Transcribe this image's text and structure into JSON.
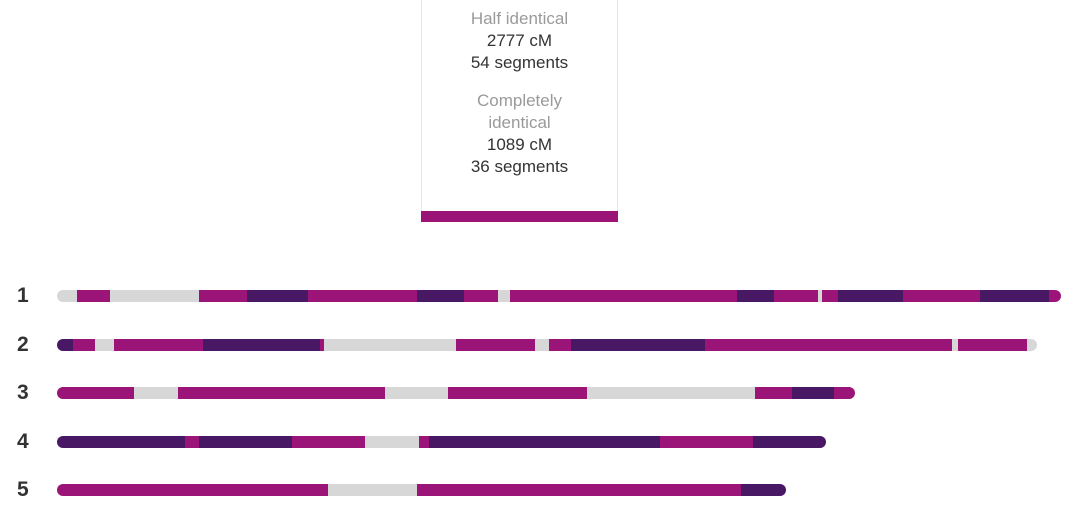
{
  "summary": {
    "half_identical": {
      "label": "Half identical",
      "cm": "2777 cM",
      "segments": "54 segments"
    },
    "completely_identical": {
      "label_line1": "Completely",
      "label_line2": "identical",
      "cm": "1089 cM",
      "segments": "36 segments"
    }
  },
  "colors": {
    "none": "#d7d7d7",
    "half": "#9b1478",
    "full": "#481865"
  },
  "legend_sample": "half",
  "scale_max": 248,
  "chromosomes": [
    {
      "label": "1",
      "length": 248,
      "segments": [
        [
          "none",
          0,
          5
        ],
        [
          "half",
          5,
          13
        ],
        [
          "none",
          13,
          35
        ],
        [
          "half",
          35,
          47
        ],
        [
          "full",
          47,
          62
        ],
        [
          "half",
          62,
          89
        ],
        [
          "full",
          89,
          100.5
        ],
        [
          "half",
          100.5,
          109
        ],
        [
          "none",
          109,
          112
        ],
        [
          "half",
          112,
          168
        ],
        [
          "full",
          168,
          177
        ],
        [
          "half",
          177,
          188
        ],
        [
          "none",
          188,
          189
        ],
        [
          "half",
          189,
          193
        ],
        [
          "full",
          193,
          209
        ],
        [
          "half",
          209,
          228
        ],
        [
          "full",
          228,
          245
        ],
        [
          "half",
          245,
          248
        ]
      ]
    },
    {
      "label": "2",
      "length": 242,
      "segments": [
        [
          "full",
          0,
          4
        ],
        [
          "half",
          4,
          9.5
        ],
        [
          "none",
          9.5,
          14
        ],
        [
          "half",
          14,
          36
        ],
        [
          "full",
          36,
          65
        ],
        [
          "half",
          65,
          66
        ],
        [
          "none",
          66,
          98.5
        ],
        [
          "half",
          98.5,
          118
        ],
        [
          "none",
          118,
          121.5
        ],
        [
          "half",
          121.5,
          127
        ],
        [
          "full",
          127,
          160
        ],
        [
          "half",
          160,
          221
        ],
        [
          "none",
          221,
          222.5
        ],
        [
          "half",
          222.5,
          239.5
        ],
        [
          "none",
          239.5,
          242
        ]
      ]
    },
    {
      "label": "3",
      "length": 197,
      "segments": [
        [
          "half",
          0,
          19
        ],
        [
          "none",
          19,
          30
        ],
        [
          "half",
          30,
          81
        ],
        [
          "none",
          81,
          96.5
        ],
        [
          "half",
          96.5,
          131
        ],
        [
          "none",
          131,
          172.5
        ],
        [
          "half",
          172.5,
          181.5
        ],
        [
          "full",
          181.5,
          192
        ],
        [
          "half",
          192,
          197
        ]
      ]
    },
    {
      "label": "4",
      "length": 190,
      "segments": [
        [
          "full",
          0,
          31.5
        ],
        [
          "half",
          31.5,
          35
        ],
        [
          "full",
          35,
          58
        ],
        [
          "half",
          58,
          76
        ],
        [
          "none",
          76,
          89.5
        ],
        [
          "half",
          89.5,
          92
        ],
        [
          "full",
          92,
          149
        ],
        [
          "half",
          149,
          172
        ],
        [
          "full",
          172,
          190
        ]
      ]
    },
    {
      "label": "5",
      "length": 180,
      "segments": [
        [
          "half",
          0,
          67
        ],
        [
          "none",
          67,
          89
        ],
        [
          "half",
          89,
          169
        ],
        [
          "full",
          169,
          180
        ]
      ]
    }
  ]
}
